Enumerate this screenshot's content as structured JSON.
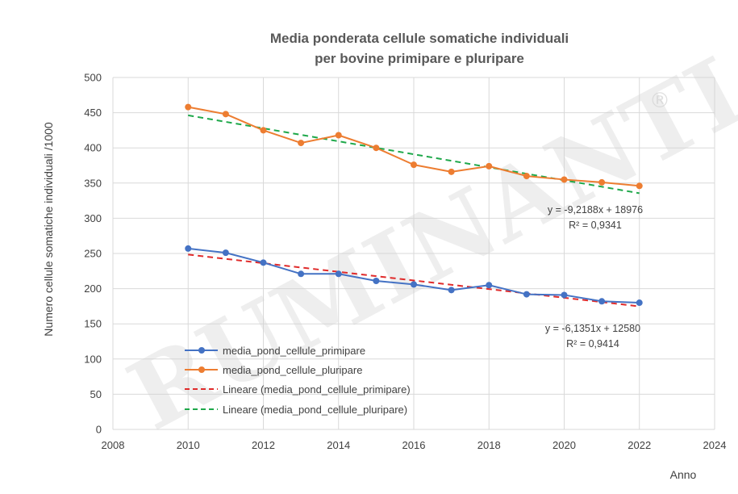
{
  "chart_data": {
    "type": "line",
    "title_lines": [
      "Media ponderata cellule somatiche individuali",
      "per bovine primipare e pluripare"
    ],
    "xlabel": "Anno",
    "ylabel": "Numero cellule somatiche individuali /1000",
    "xlim": [
      2008,
      2024
    ],
    "ylim": [
      0,
      500
    ],
    "x_ticks": [
      2008,
      2010,
      2012,
      2014,
      2016,
      2018,
      2020,
      2022,
      2024
    ],
    "y_ticks": [
      0,
      50,
      100,
      150,
      200,
      250,
      300,
      350,
      400,
      450,
      500
    ],
    "grid": true,
    "legend_position": "bottom-left",
    "x": [
      2010,
      2011,
      2012,
      2013,
      2014,
      2015,
      2016,
      2017,
      2018,
      2019,
      2020,
      2021,
      2022
    ],
    "series": [
      {
        "name": "media_pond_cellule_primipare",
        "color": "#4472c4",
        "values": [
          257,
          251,
          237,
          221,
          221,
          211,
          206,
          198,
          205,
          192,
          191,
          182,
          180
        ]
      },
      {
        "name": "media_pond_cellule_pluripare",
        "color": "#ed7d31",
        "values": [
          458,
          448,
          425,
          407,
          418,
          400,
          376,
          366,
          374,
          360,
          355,
          351,
          346
        ]
      }
    ],
    "trendlines": [
      {
        "name": "Lineare (media_pond_cellule_primipare)",
        "color": "#e02b2b",
        "slope": -6.1351,
        "intercept": 12580,
        "equation": "y = -6,1351x + 12580",
        "r2_label": "R² = 0,9414"
      },
      {
        "name": "Lineare (media_pond_cellule_pluripare)",
        "color": "#1ea84a",
        "slope": -9.2188,
        "intercept": 18976,
        "equation": "y = -9,2188x + 18976",
        "r2_label": "R² = 0,9341"
      }
    ],
    "watermark": "RUMINANTIA",
    "watermark_mark": "®"
  }
}
